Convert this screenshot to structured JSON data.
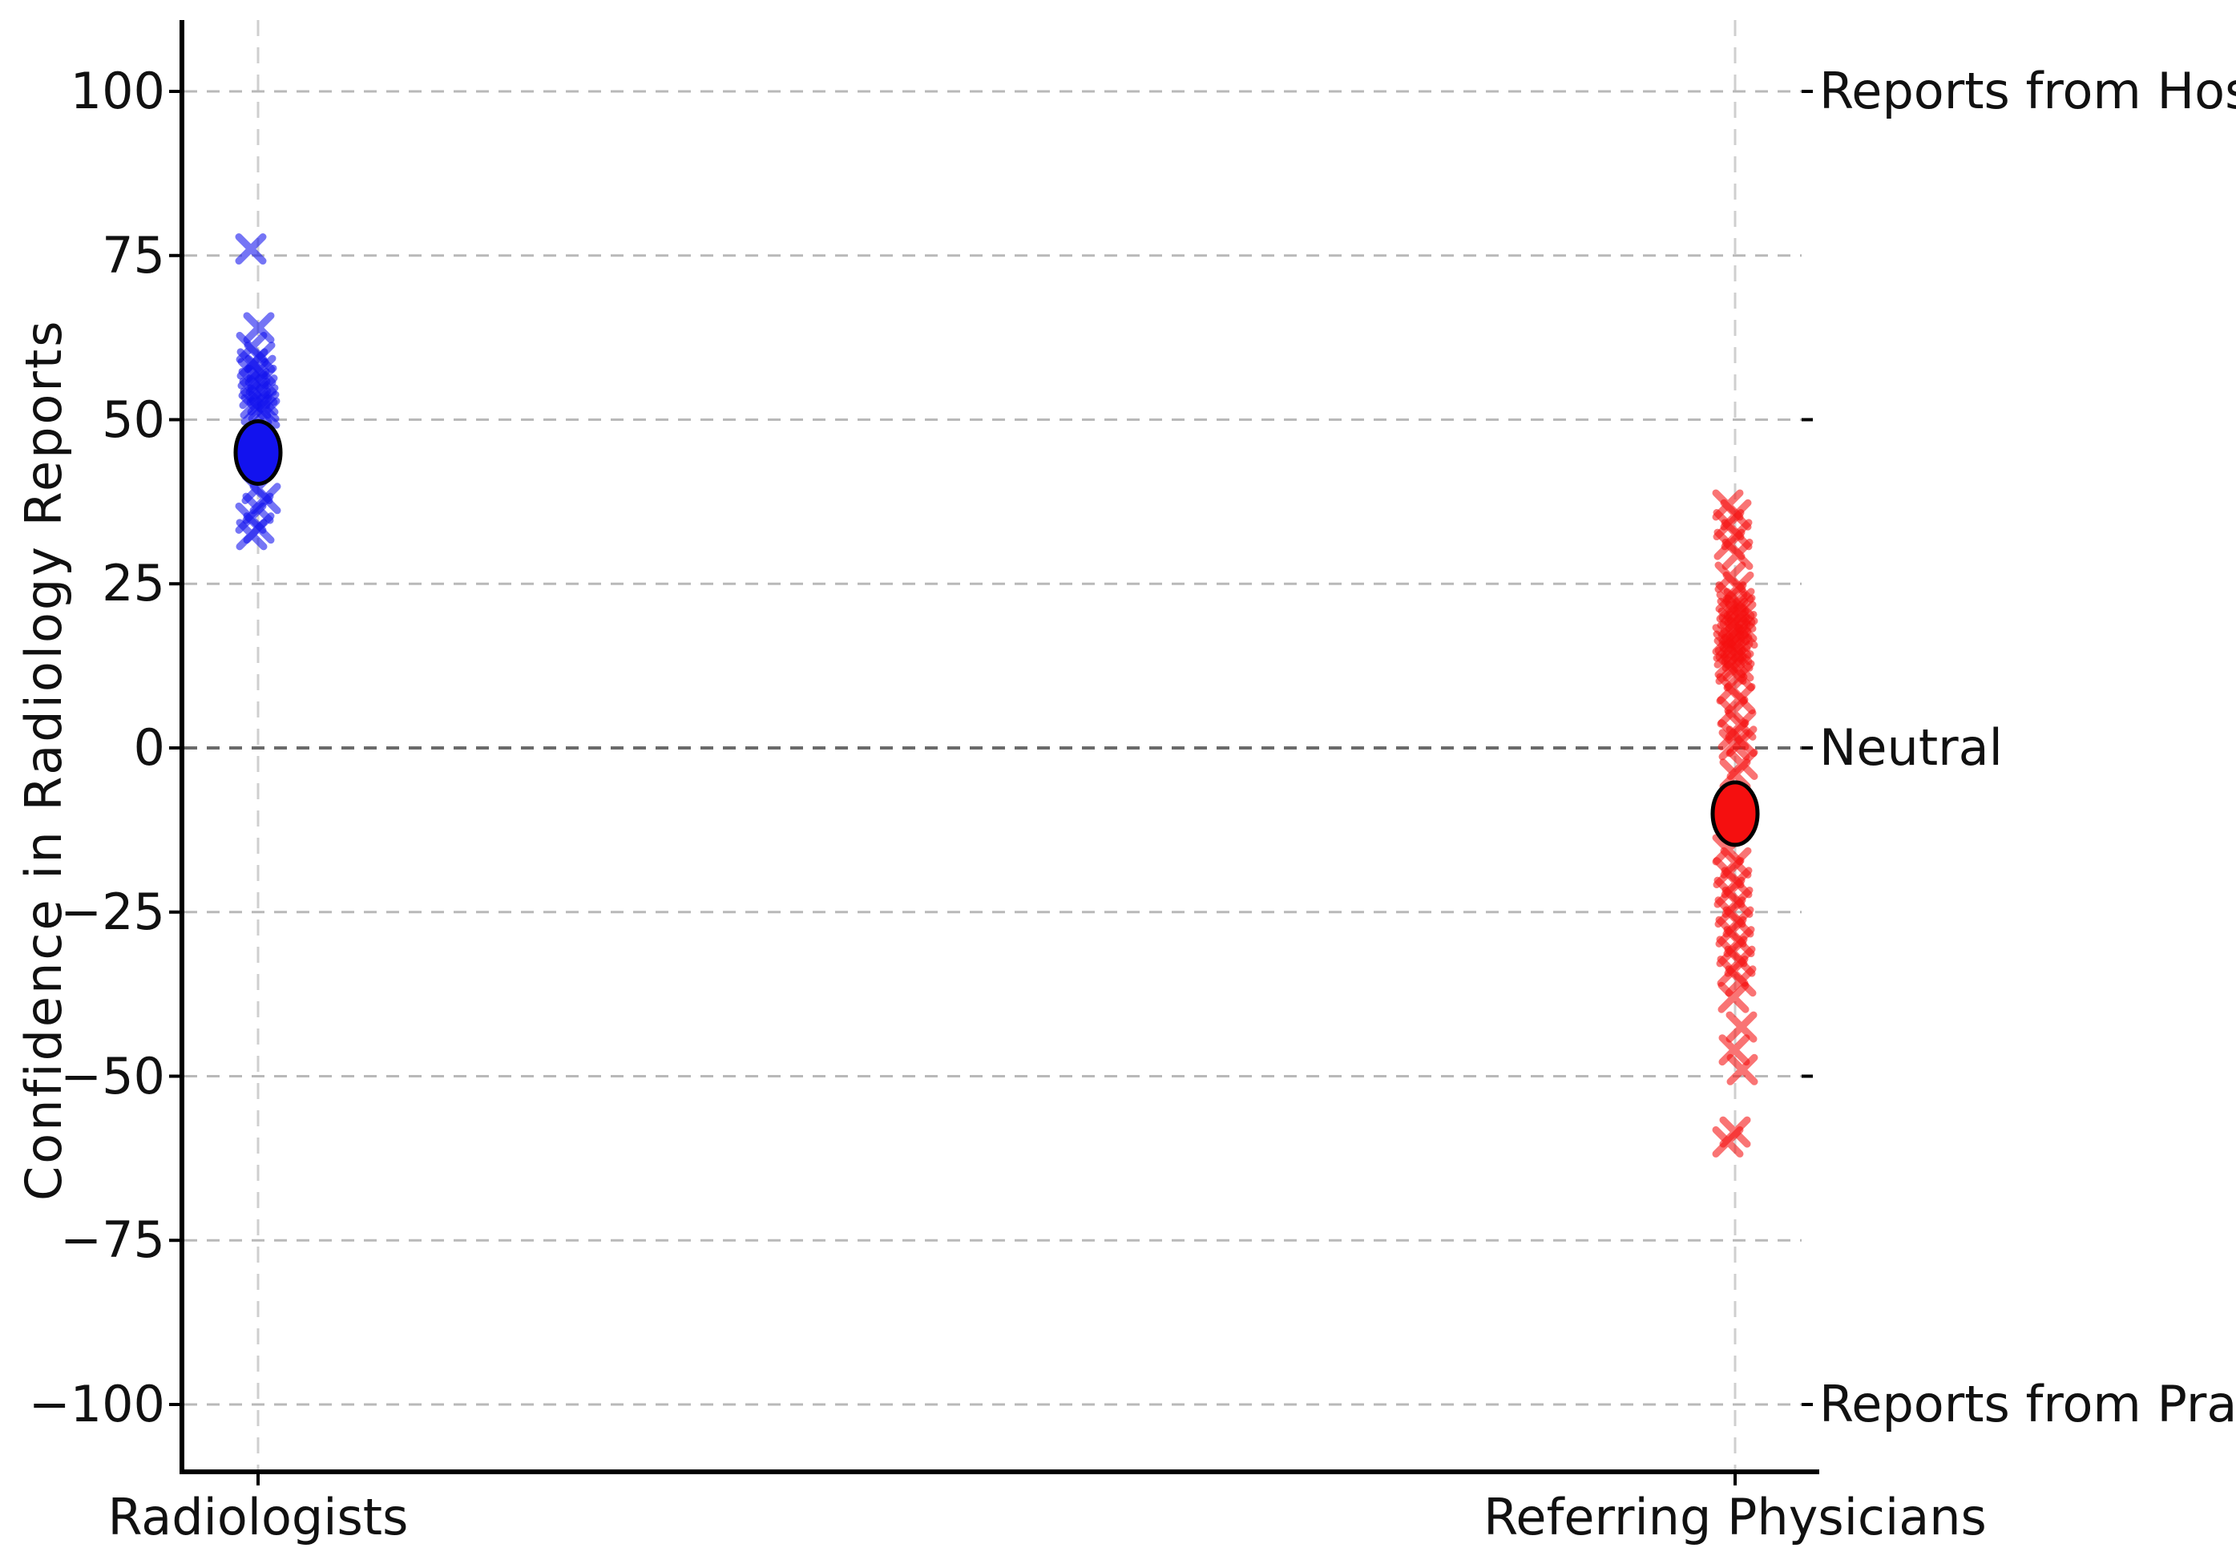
{
  "chart_data": {
    "type": "scatter",
    "title": "",
    "ylabel": "Confidence in Radiology Reports",
    "xlabel": "",
    "ylim": [
      -110,
      110
    ],
    "grid": true,
    "grid_style": "dashed",
    "legend": false,
    "categories": [
      "Radiologists",
      "Referring Physicians"
    ],
    "ytick_labels": [
      "100",
      "75",
      "50",
      "25",
      "0",
      "−25",
      "−50",
      "−75",
      "−100"
    ],
    "ytick_values": [
      100,
      75,
      50,
      25,
      0,
      -25,
      -50,
      -75,
      -100
    ],
    "right_tick_values": [
      100,
      50,
      0,
      -50,
      -100
    ],
    "right_annotations": [
      {
        "value": 100,
        "label": "Reports from Hospitals"
      },
      {
        "value": 0,
        "label": "Neutral"
      },
      {
        "value": -100,
        "label": "Reports from Practices"
      }
    ],
    "zero_line_value": 0,
    "series": [
      {
        "name": "Radiologists",
        "key": "radiologists",
        "marker": "x",
        "color": "#1212ee",
        "mean_marker_value": 45,
        "values": [
          76,
          64,
          61,
          59.5,
          58.5,
          57.5,
          57,
          56,
          55.5,
          54.5,
          54,
          53,
          52.5,
          52,
          51.5,
          51,
          39.5,
          38,
          36.5,
          35,
          33.5,
          32.5
        ]
      },
      {
        "name": "Referring Physicians",
        "key": "referring-physicians",
        "marker": "x",
        "color": "#f50f0f",
        "mean_marker_value": -10,
        "values": [
          37,
          35.5,
          34,
          32.5,
          31,
          29.5,
          26,
          24.5,
          23,
          22,
          21.5,
          21,
          20.5,
          20,
          19,
          18.5,
          18,
          17.5,
          17,
          16.5,
          16,
          15.5,
          15,
          14.5,
          14,
          13,
          12.5,
          12,
          11,
          9,
          7.5,
          5.5,
          3.5,
          2,
          1,
          0.5,
          -2.5,
          -4,
          -15.5,
          -17.5,
          -19,
          -20.5,
          -22,
          -23.5,
          -25,
          -26.5,
          -28,
          -29.5,
          -31,
          -32.5,
          -34,
          -35.5,
          -38,
          -42.5,
          -46,
          -49,
          -58.5,
          -60
        ]
      }
    ],
    "colors": {
      "accent_blue": "#1212ee",
      "accent_red": "#f50f0f",
      "grid": "#b9b9b9",
      "vgrid": "#cfcfcf",
      "zero_line": "#6a6a6a",
      "spine": "#000000"
    }
  }
}
